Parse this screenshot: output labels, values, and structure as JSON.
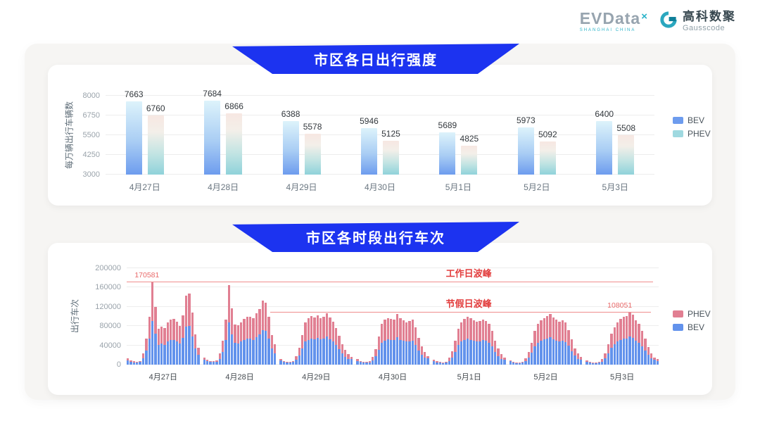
{
  "header": {
    "evdata_logo": {
      "word": "EVData",
      "sup": "×",
      "tagline": "SHANGHAI CHINA"
    },
    "gausscode_logo": {
      "cn": "高科数聚",
      "en": "Gausscode"
    }
  },
  "colors": {
    "banner_blue": "#1c33f0",
    "bev_gradient_top": "#ddf3fb",
    "bev_gradient_bottom": "#6d9cee",
    "phev_gradient_top": "#f7e7e2",
    "phev_gradient_bottom": "#8fd2da",
    "legend_bev_daily": "#6d9cee",
    "legend_phev_daily": "#9fd9e0",
    "bev_hourly": "#6292ec",
    "phev_hourly": "#e17f92",
    "annotation_red": "#e23c3c",
    "peak_line_red": "#ef8d8d"
  },
  "section1": {
    "title": "市区各日出行强度"
  },
  "section2": {
    "title": "市区各时段出行车次"
  },
  "chart_data": [
    {
      "type": "bar",
      "title": "市区各日出行强度",
      "xlabel": "",
      "ylabel": "每万辆出行车辆数",
      "ylim": [
        3000,
        8000
      ],
      "yticks": [
        3000,
        4250,
        5500,
        6750,
        8000
      ],
      "grid": true,
      "legend_position": "right",
      "legend": [
        "BEV",
        "PHEV"
      ],
      "categories": [
        "4月27日",
        "4月28日",
        "4月29日",
        "4月30日",
        "5月1日",
        "5月2日",
        "5月3日"
      ],
      "series": [
        {
          "name": "BEV",
          "values": [
            7663,
            7684,
            6388,
            5946,
            5689,
            5973,
            6400
          ]
        },
        {
          "name": "PHEV",
          "values": [
            6760,
            6866,
            5578,
            5125,
            4825,
            5092,
            5508
          ]
        }
      ]
    },
    {
      "type": "bar",
      "stacked": true,
      "title": "市区各时段出行车次",
      "xlabel": "",
      "ylabel": "出行车次",
      "ylim": [
        0,
        200000
      ],
      "yticks": [
        0,
        40000,
        80000,
        120000,
        160000,
        200000
      ],
      "grid": true,
      "legend_position": "right",
      "legend": [
        "PHEV",
        "BEV"
      ],
      "categories": [
        "4月27日",
        "4月28日",
        "4月29日",
        "4月30日",
        "5月1日",
        "5月2日",
        "5月3日"
      ],
      "annotations": [
        {
          "label": "工作日波峰",
          "value": 170581,
          "value_label": "170581"
        },
        {
          "label": "节假日波峰",
          "value": 108051,
          "value_label": "108051"
        }
      ],
      "series": [
        {
          "name": "BEV",
          "values_by_day": [
            [
              9100,
              6300,
              4900,
              4550,
              5600,
              13500,
              29700,
              54300,
              91000,
              64500,
              41000,
              43200,
              41600,
              47500,
              50800,
              51600,
              48900,
              44000,
              55600,
              78300,
              80700,
              58600,
              34000,
              21000
            ],
            [
              10500,
              7000,
              5600,
              5250,
              6300,
              12400,
              27000,
              50800,
              88000,
              63200,
              44800,
              44300,
              47500,
              51300,
              53500,
              54000,
              51800,
              57200,
              62600,
              72100,
              69400,
              53500,
              33500,
              23200
            ],
            [
              8400,
              5600,
              4550,
              4200,
              5250,
              9700,
              18900,
              33500,
              47500,
              51800,
              54500,
              52900,
              54800,
              52100,
              54000,
              57800,
              52900,
              47800,
              41000,
              32400,
              22700,
              16200,
              11900,
              11200
            ],
            [
              7700,
              5250,
              4200,
              3850,
              4900,
              8600,
              17300,
              31300,
              45400,
              50200,
              52400,
              51300,
              50500,
              56700,
              51800,
              49700,
              47500,
              48900,
              50200,
              41600,
              29700,
              20500,
              14000,
              12600
            ],
            [
              7000,
              4900,
              3850,
              3500,
              4550,
              7600,
              15100,
              27000,
              40500,
              47500,
              51300,
              53700,
              51800,
              49700,
              47800,
              48600,
              50500,
              49100,
              45900,
              37800,
              27000,
              17800,
              11900,
              10500
            ],
            [
              6650,
              4550,
              3500,
              3360,
              4200,
              7000,
              14000,
              24800,
              37800,
              45900,
              49700,
              52400,
              54300,
              57000,
              52900,
              50200,
              48100,
              49400,
              47000,
              38900,
              28100,
              18400,
              12400,
              10850
            ],
            [
              6300,
              4200,
              3500,
              3150,
              3850,
              6500,
              13000,
              22700,
              34600,
              42100,
              47500,
              51300,
              53500,
              54500,
              58051,
              55900,
              49700,
              45400,
              37800,
              29200,
              20000,
              13000,
              10500,
              7700
            ]
          ]
        },
        {
          "name": "PHEV",
          "values_by_day": [
            [
              3900,
              2700,
              2100,
              1950,
              2400,
              10000,
              24200,
              45200,
              79581,
              55000,
              34200,
              36000,
              34600,
              39600,
              42300,
              43000,
              40700,
              36700,
              46300,
              65200,
              67300,
              48800,
              28300,
              14000
            ],
            [
              4500,
              3000,
              2400,
              2250,
              2700,
              10600,
              23000,
              43200,
              77000,
              53800,
              38200,
              37700,
              40500,
              43700,
              45500,
              46000,
              44200,
              48800,
              53400,
              61400,
              59100,
              45500,
              28500,
              19800
            ],
            [
              3600,
              2400,
              1950,
              1800,
              2250,
              8300,
              16100,
              28500,
              40500,
              44200,
              46500,
              45100,
              46700,
              44400,
              46000,
              49200,
              45100,
              40700,
              35000,
              27600,
              19300,
              13800,
              10100,
              4800
            ],
            [
              3300,
              2250,
              1800,
              1650,
              2100,
              7400,
              14700,
              26700,
              38600,
              42800,
              44600,
              43700,
              43000,
              48300,
              44200,
              42300,
              40500,
              41600,
              42800,
              35400,
              25300,
              17500,
              12000,
              5400
            ],
            [
              3000,
              2100,
              1650,
              1500,
              1950,
              6400,
              12900,
              23000,
              34500,
              40500,
              43700,
              45800,
              44200,
              42300,
              40700,
              41400,
              43000,
              41900,
              39100,
              32200,
              23000,
              15200,
              10100,
              4500
            ],
            [
              2850,
              1950,
              1500,
              1440,
              1800,
              6000,
              12000,
              21200,
              32200,
              39100,
              42300,
              44600,
              46200,
              48500,
              45100,
              42800,
              40900,
              42100,
              40000,
              33100,
              23900,
              15600,
              10600,
              4650
            ],
            [
              2700,
              1800,
              1500,
              1350,
              1650,
              5500,
              11000,
              19300,
              29400,
              35900,
              40500,
              43700,
              45500,
              46500,
              50000,
              47600,
              42300,
              38600,
              32200,
              24800,
              17000,
              11000,
              4500,
              3300
            ]
          ]
        }
      ]
    }
  ]
}
